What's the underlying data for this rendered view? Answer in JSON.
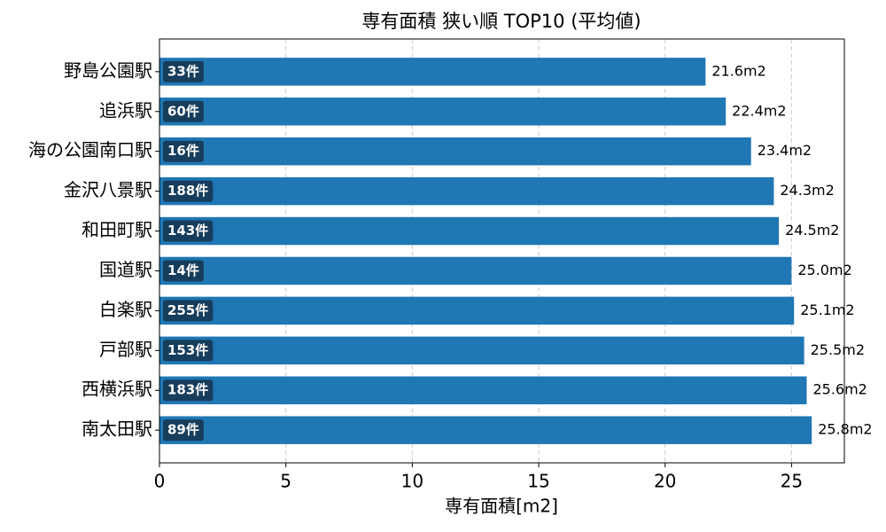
{
  "chart_data": {
    "type": "barh",
    "title": "専有面積 狭い順 TOP10 (平均値)",
    "xlabel": "専有面積[m2]",
    "categories": [
      "野島公園駅",
      "追浜駅",
      "海の公園南口駅",
      "金沢八景駅",
      "和田町駅",
      "国道駅",
      "白楽駅",
      "戸部駅",
      "西横浜駅",
      "南太田駅"
    ],
    "values": [
      21.6,
      22.4,
      23.4,
      24.3,
      24.5,
      25.0,
      25.1,
      25.5,
      25.6,
      25.8
    ],
    "value_labels": [
      "21.6m2",
      "22.4m2",
      "23.4m2",
      "24.3m2",
      "24.5m2",
      "25.0m2",
      "25.1m2",
      "25.5m2",
      "25.6m2",
      "25.8m2"
    ],
    "count_labels": [
      "33件",
      "60件",
      "16件",
      "188件",
      "143件",
      "14件",
      "255件",
      "153件",
      "183件",
      "89件"
    ],
    "color": "#1f77b4",
    "badge_color": "#173d5c",
    "xlim": [
      0,
      27.09
    ],
    "xticks": [
      0,
      5,
      10,
      15,
      20,
      25
    ],
    "grid": true
  }
}
